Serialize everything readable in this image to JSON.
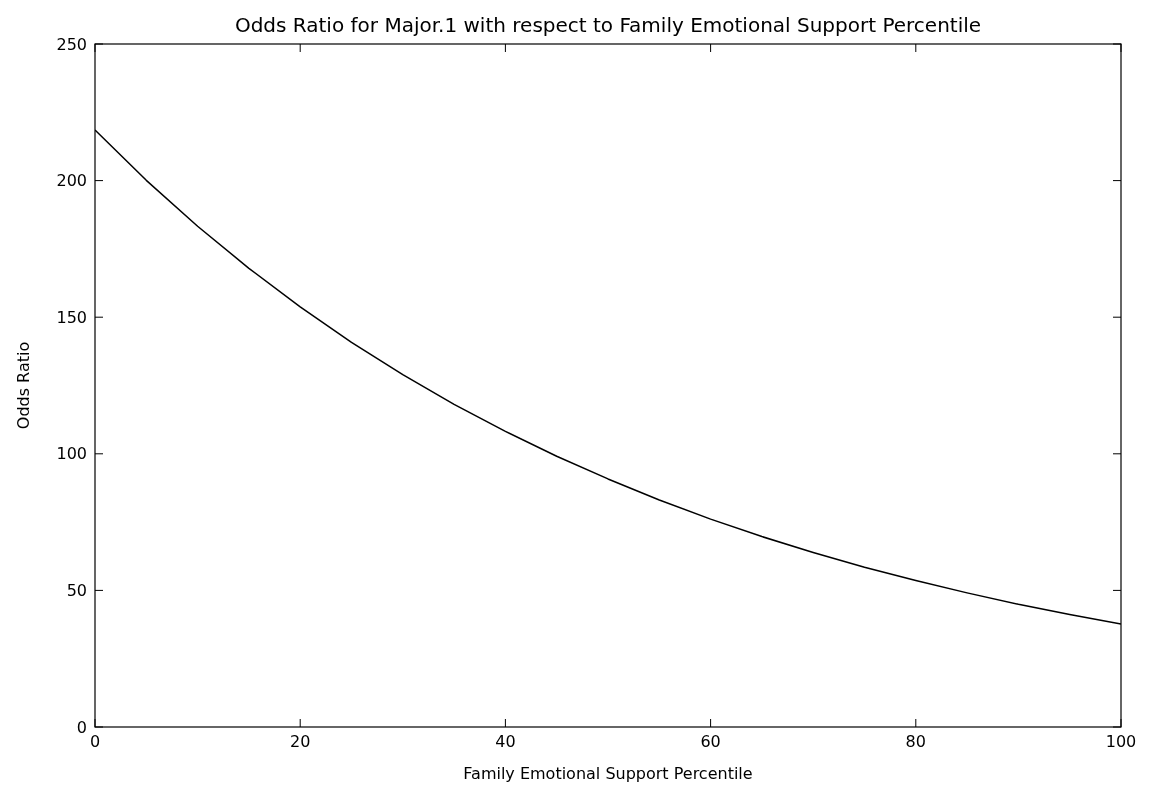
{
  "chart_data": {
    "type": "line",
    "title": "Odds Ratio for Major.1 with respect to Family Emotional Support Percentile",
    "xlabel": "Family Emotional Support Percentile",
    "ylabel": "Odds Ratio",
    "x": [
      0,
      5,
      10,
      15,
      20,
      25,
      30,
      35,
      40,
      45,
      50,
      55,
      60,
      65,
      70,
      75,
      80,
      85,
      90,
      95,
      100
    ],
    "series": [
      {
        "color": "#000000",
        "values": [
          218.5,
          200.1,
          183.3,
          167.9,
          153.8,
          140.8,
          129.0,
          118.1,
          108.2,
          99.1,
          90.8,
          83.1,
          76.1,
          69.7,
          63.9,
          58.5,
          53.6,
          49.1,
          44.9,
          41.2,
          37.7
        ]
      }
    ],
    "xlim": [
      0,
      100
    ],
    "xticks": [
      0,
      20,
      40,
      60,
      80,
      100
    ],
    "ylim": [
      0,
      250
    ],
    "yticks": [
      0,
      50,
      100,
      150,
      200,
      250
    ],
    "marker": "none",
    "line_style": "solid"
  }
}
